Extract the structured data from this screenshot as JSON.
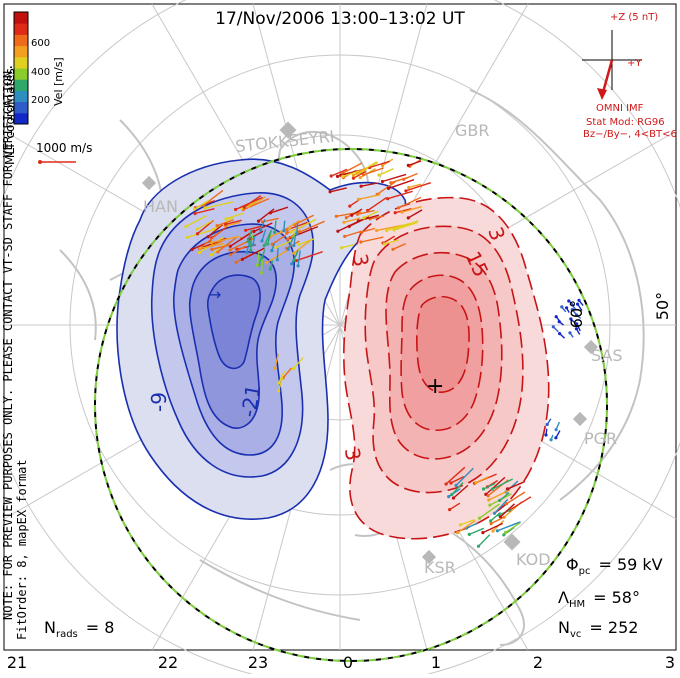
{
  "chart_data": {
    "type": "contour",
    "title": "17/Nov/2006 13:00–13:02 UT",
    "side_note": "NOTE: FOR PREVIEW PURPOSES ONLY. PLEASE CONTACT VT-SD STAFF FOR VERIFICATION.",
    "fit_note": "FitOrder: 8, mapEX format",
    "coords_label": "MLT coordinates",
    "velocity_scale": {
      "title": "Vel [m/s]",
      "ticks": [
        200,
        400,
        600
      ],
      "colors": [
        "#1428c8",
        "#2f5cc8",
        "#2e8ec0",
        "#2fa86a",
        "#8ccc2a",
        "#e0d020",
        "#f3a020",
        "#ef6a1a",
        "#e02a18",
        "#c01010"
      ]
    },
    "reference_vector": "1000 m/s",
    "imf": {
      "z_label": "+Z (5 nT)",
      "y_label": "+Y",
      "source": "OMNI IMF",
      "model": "Stat Mod: RG96",
      "conditions": "Bz−/By−, 4<BT<6"
    },
    "stats": {
      "phi_label": "Φ",
      "phi_sub": "pc",
      "phi_value": "= 59 kV",
      "lambda_label": "Λ",
      "lambda_sub": "HM",
      "lambda_value": "= 58°",
      "nvc_label": "N",
      "nvc_sub": "vc",
      "nvc_value": "= 252",
      "nrads_label": "N",
      "nrads_sub": "rads",
      "nrads_value": "= 8"
    },
    "mlt_ticks": [
      "21",
      "22",
      "23",
      "0",
      "1",
      "2",
      "3"
    ],
    "latitude_labels": [
      "60°",
      "50°"
    ],
    "radar_labels": [
      "STOKKSEYRI",
      "HAN",
      "GBR",
      "SAS",
      "PGR",
      "KOD",
      "KSR"
    ],
    "contour_labels": {
      "negative": [
        "-9",
        "-21"
      ],
      "positive": [
        "3",
        "15",
        "3",
        "3"
      ]
    },
    "potential_extrema": {
      "min_marker": "→",
      "max_marker": "+"
    },
    "boundary": "Heppner-Maynard boundary",
    "colors": {
      "negative": "#1a2fb0",
      "positive": "#c81414",
      "imf": "#d01818",
      "boundary_green": "#7ccf3a"
    }
  }
}
